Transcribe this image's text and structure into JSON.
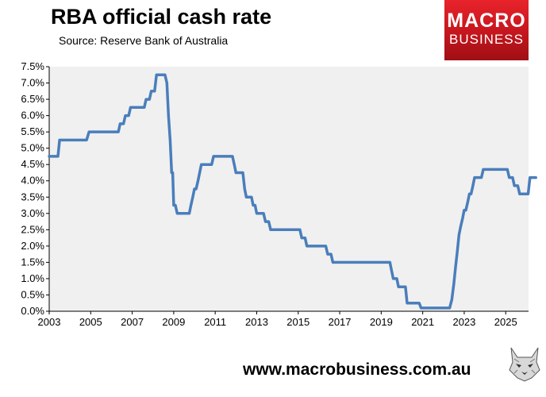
{
  "header": {
    "title": "RBA official cash rate",
    "subtitle": "Source: Reserve Bank of Australia"
  },
  "logo": {
    "line1": "MACRO",
    "line2": "BUSINESS",
    "color": "#d71920"
  },
  "footer": {
    "url": "www.macrobusiness.com.au"
  },
  "chart_data": {
    "type": "line",
    "title": "RBA official cash rate",
    "xlabel": "",
    "ylabel": "",
    "xlim": [
      2003,
      2026.1
    ],
    "ylim": [
      0,
      7.5
    ],
    "x_ticks": [
      "2003",
      "2005",
      "2007",
      "2009",
      "2011",
      "2013",
      "2015",
      "2017",
      "2019",
      "2021",
      "2023",
      "2025"
    ],
    "y_ticks": [
      "0.0%",
      "0.5%",
      "1.0%",
      "1.5%",
      "2.0%",
      "2.5%",
      "3.0%",
      "3.5%",
      "4.0%",
      "4.5%",
      "5.0%",
      "5.5%",
      "6.0%",
      "6.5%",
      "7.0%",
      "7.5%"
    ],
    "grid": false,
    "plot_background": "#f0f0f0",
    "series": [
      {
        "name": "",
        "color": "#4a7ebb",
        "points": [
          [
            2003.0,
            4.75
          ],
          [
            2003.42,
            4.75
          ],
          [
            2003.5,
            5.25
          ],
          [
            2004.8,
            5.25
          ],
          [
            2004.92,
            5.5
          ],
          [
            2006.33,
            5.5
          ],
          [
            2006.42,
            5.75
          ],
          [
            2006.58,
            5.75
          ],
          [
            2006.67,
            6.0
          ],
          [
            2006.83,
            6.0
          ],
          [
            2006.92,
            6.25
          ],
          [
            2007.58,
            6.25
          ],
          [
            2007.67,
            6.5
          ],
          [
            2007.83,
            6.5
          ],
          [
            2007.92,
            6.75
          ],
          [
            2008.08,
            6.75
          ],
          [
            2008.17,
            7.25
          ],
          [
            2008.58,
            7.25
          ],
          [
            2008.67,
            7.0
          ],
          [
            2008.75,
            6.0
          ],
          [
            2008.83,
            5.25
          ],
          [
            2008.9,
            4.25
          ],
          [
            2008.95,
            4.25
          ],
          [
            2009.0,
            3.25
          ],
          [
            2009.08,
            3.25
          ],
          [
            2009.17,
            3.0
          ],
          [
            2009.75,
            3.0
          ],
          [
            2009.83,
            3.25
          ],
          [
            2009.92,
            3.5
          ],
          [
            2010.0,
            3.75
          ],
          [
            2010.08,
            3.75
          ],
          [
            2010.17,
            4.0
          ],
          [
            2010.25,
            4.25
          ],
          [
            2010.33,
            4.5
          ],
          [
            2010.83,
            4.5
          ],
          [
            2010.92,
            4.75
          ],
          [
            2011.83,
            4.75
          ],
          [
            2011.92,
            4.5
          ],
          [
            2012.0,
            4.25
          ],
          [
            2012.33,
            4.25
          ],
          [
            2012.42,
            3.75
          ],
          [
            2012.5,
            3.5
          ],
          [
            2012.75,
            3.5
          ],
          [
            2012.83,
            3.25
          ],
          [
            2012.92,
            3.25
          ],
          [
            2013.0,
            3.0
          ],
          [
            2013.33,
            3.0
          ],
          [
            2013.42,
            2.75
          ],
          [
            2013.58,
            2.75
          ],
          [
            2013.67,
            2.5
          ],
          [
            2015.08,
            2.5
          ],
          [
            2015.17,
            2.25
          ],
          [
            2015.33,
            2.25
          ],
          [
            2015.42,
            2.0
          ],
          [
            2016.33,
            2.0
          ],
          [
            2016.42,
            1.75
          ],
          [
            2016.58,
            1.75
          ],
          [
            2016.67,
            1.5
          ],
          [
            2019.42,
            1.5
          ],
          [
            2019.5,
            1.25
          ],
          [
            2019.58,
            1.0
          ],
          [
            2019.75,
            1.0
          ],
          [
            2019.83,
            0.75
          ],
          [
            2020.17,
            0.75
          ],
          [
            2020.25,
            0.25
          ],
          [
            2020.83,
            0.25
          ],
          [
            2020.92,
            0.1
          ],
          [
            2022.3,
            0.1
          ],
          [
            2022.4,
            0.35
          ],
          [
            2022.5,
            0.85
          ],
          [
            2022.58,
            1.35
          ],
          [
            2022.67,
            1.85
          ],
          [
            2022.75,
            2.35
          ],
          [
            2022.83,
            2.6
          ],
          [
            2022.92,
            2.85
          ],
          [
            2023.0,
            3.1
          ],
          [
            2023.08,
            3.1
          ],
          [
            2023.17,
            3.35
          ],
          [
            2023.25,
            3.6
          ],
          [
            2023.33,
            3.6
          ],
          [
            2023.42,
            3.85
          ],
          [
            2023.5,
            4.1
          ],
          [
            2023.83,
            4.1
          ],
          [
            2023.92,
            4.35
          ],
          [
            2025.08,
            4.35
          ],
          [
            2025.17,
            4.1
          ],
          [
            2025.33,
            4.1
          ],
          [
            2025.42,
            3.85
          ],
          [
            2025.58,
            3.85
          ],
          [
            2025.67,
            3.6
          ],
          [
            2026.08,
            3.6
          ],
          [
            2026.17,
            4.1
          ],
          [
            2026.45,
            4.1
          ]
        ]
      }
    ]
  }
}
